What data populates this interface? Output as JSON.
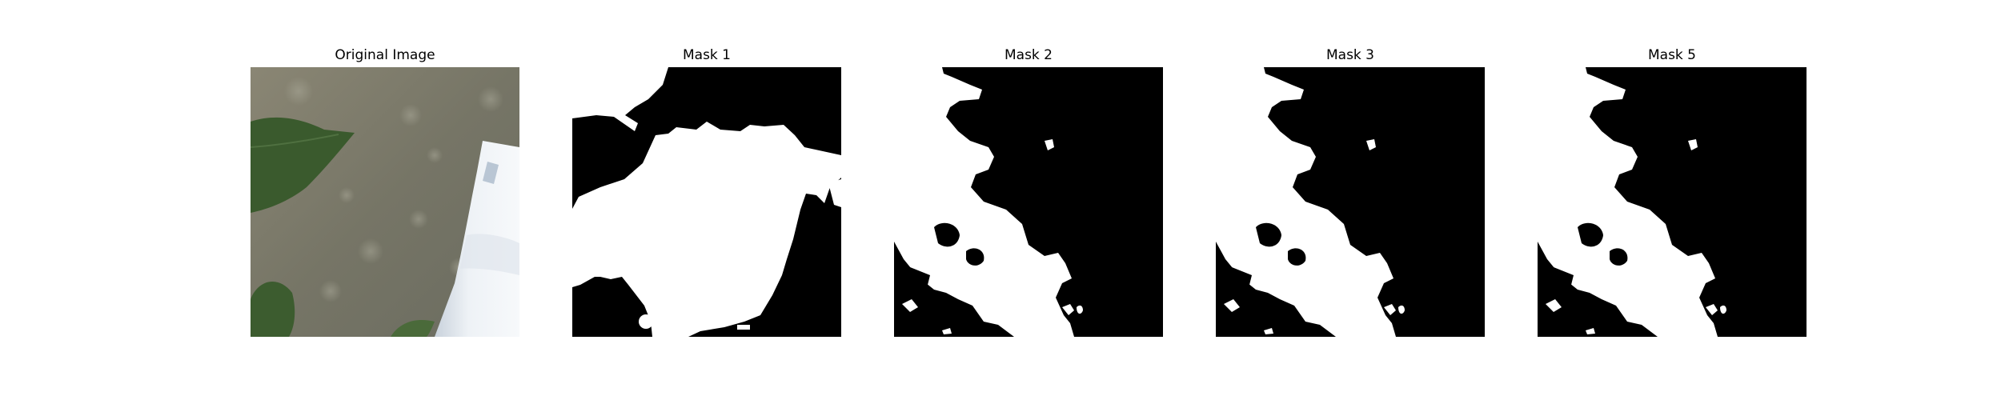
{
  "figure": {
    "panels": [
      {
        "title": "Original Image",
        "kind": "photo",
        "alt_icon": "photo-image"
      },
      {
        "title": "Mask 1",
        "kind": "mask"
      },
      {
        "title": "Mask 2",
        "kind": "mask"
      },
      {
        "title": "Mask 3",
        "kind": "mask"
      },
      {
        "title": "Mask 5",
        "kind": "mask"
      }
    ],
    "colors": {
      "mask_foreground": "#ffffff",
      "mask_background": "#000000",
      "photo_ground": "#7e7d6d",
      "leaf": "#3b5a2e",
      "card": "#e8edf2"
    }
  }
}
